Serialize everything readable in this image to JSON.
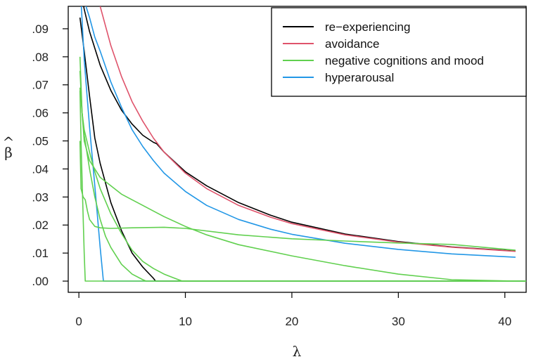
{
  "chart_data": {
    "type": "line",
    "xlabel": "λ",
    "ylabel": "β̂",
    "ylabel_base": "β",
    "ylabel_hat": "^",
    "xlim": [
      -1,
      42
    ],
    "ylim": [
      -0.004,
      0.098
    ],
    "xticks": [
      0,
      10,
      20,
      30,
      40
    ],
    "xtick_labels": [
      "0",
      "10",
      "20",
      "30",
      "40"
    ],
    "yticks": [
      0.0,
      0.01,
      0.02,
      0.03,
      0.04,
      0.05,
      0.06,
      0.07,
      0.08,
      0.09
    ],
    "ytick_labels": [
      ".00",
      ".01",
      ".02",
      ".03",
      ".04",
      ".05",
      ".06",
      ".07",
      ".08",
      ".09"
    ],
    "legend": {
      "position": "top-right",
      "entries": [
        {
          "label": "re−experiencing",
          "color": "#000000"
        },
        {
          "label": "avoidance",
          "color": "#DF536B"
        },
        {
          "label": "negative cognitions and mood",
          "color": "#61D04F"
        },
        {
          "label": "hyperarousal",
          "color": "#2297E6"
        }
      ]
    },
    "series": [
      {
        "name": "re-experiencing",
        "group": "re−experiencing",
        "color": "#000000",
        "x": [
          0.1,
          0.5,
          1,
          2,
          3,
          4,
          5,
          6,
          7,
          7.3,
          8,
          10,
          12,
          15,
          18,
          20,
          25,
          30,
          35,
          41
        ],
        "y": [
          0.105,
          0.097,
          0.089,
          0.077,
          0.068,
          0.061,
          0.056,
          0.052,
          0.0495,
          0.049,
          0.046,
          0.039,
          0.034,
          0.028,
          0.0235,
          0.021,
          0.0168,
          0.0141,
          0.0122,
          0.0107
        ]
      },
      {
        "name": "re-experiencing-2",
        "group": "re−experiencing",
        "color": "#000000",
        "x": [
          0.1,
          0.5,
          1,
          1.5,
          2,
          3,
          4,
          5,
          6,
          7,
          7.2,
          42
        ],
        "y": [
          0.094,
          0.082,
          0.066,
          0.051,
          0.042,
          0.028,
          0.018,
          0.01,
          0.005,
          0.001,
          0,
          0
        ]
      },
      {
        "name": "avoidance",
        "group": "avoidance",
        "color": "#DF536B",
        "x": [
          2,
          3,
          4,
          5,
          6,
          7,
          8,
          10,
          12,
          15,
          18,
          20,
          25,
          30,
          35,
          41
        ],
        "y": [
          0.098,
          0.084,
          0.073,
          0.064,
          0.057,
          0.051,
          0.046,
          0.0385,
          0.033,
          0.027,
          0.0228,
          0.0205,
          0.0165,
          0.0139,
          0.0121,
          0.0106
        ]
      },
      {
        "name": "hyperarousal-1",
        "group": "hyperarousal",
        "color": "#2297E6",
        "x": [
          0.2,
          0.5,
          1,
          1.5,
          2,
          3,
          4,
          5,
          6,
          7,
          8,
          10,
          12,
          15,
          18,
          20,
          25,
          30,
          35,
          41
        ],
        "y": [
          0.105,
          0.1,
          0.094,
          0.087,
          0.082,
          0.071,
          0.062,
          0.054,
          0.048,
          0.043,
          0.0385,
          0.032,
          0.027,
          0.022,
          0.0185,
          0.0167,
          0.0135,
          0.0113,
          0.0097,
          0.0085
        ]
      },
      {
        "name": "hyperarousal-2",
        "group": "hyperarousal",
        "color": "#2297E6",
        "x": [
          0.2,
          0.5,
          1,
          1.5,
          2,
          2.3,
          42
        ],
        "y": [
          0.1,
          0.079,
          0.055,
          0.034,
          0.012,
          0,
          0
        ]
      },
      {
        "name": "negative-1",
        "group": "negative cognitions and mood",
        "color": "#61D04F",
        "x": [
          0.1,
          0.3,
          0.5,
          1,
          1.5,
          2,
          3,
          4,
          5,
          6,
          7,
          8,
          10,
          12,
          15,
          20,
          25,
          30,
          35,
          41
        ],
        "y": [
          0.08,
          0.06,
          0.05,
          0.043,
          0.04,
          0.037,
          0.034,
          0.031,
          0.029,
          0.027,
          0.025,
          0.023,
          0.0195,
          0.0165,
          0.013,
          0.009,
          0.0055,
          0.0025,
          0.0005,
          0
        ]
      },
      {
        "name": "negative-2",
        "group": "negative cognitions and mood",
        "color": "#61D04F",
        "x": [
          0.1,
          0.3,
          0.5,
          1,
          1.5,
          2,
          3,
          4,
          5,
          6,
          7,
          8,
          9,
          9.7,
          42
        ],
        "y": [
          0.075,
          0.06,
          0.054,
          0.046,
          0.039,
          0.033,
          0.024,
          0.017,
          0.011,
          0.007,
          0.0045,
          0.0025,
          0.001,
          0,
          0
        ]
      },
      {
        "name": "negative-3",
        "group": "negative cognitions and mood",
        "color": "#61D04F",
        "x": [
          0.1,
          0.3,
          0.5,
          1,
          1.5,
          2,
          2.5,
          3,
          4,
          5,
          6,
          6.3,
          42
        ],
        "y": [
          0.069,
          0.06,
          0.052,
          0.04,
          0.03,
          0.022,
          0.016,
          0.012,
          0.006,
          0.0025,
          0.0005,
          0,
          0
        ]
      },
      {
        "name": "negative-4",
        "group": "negative cognitions and mood",
        "color": "#61D04F",
        "x": [
          0.1,
          0.2,
          0.4,
          0.6,
          0.8,
          1,
          1.5,
          2,
          3,
          5,
          8,
          10,
          15,
          20,
          25,
          30,
          35,
          41
        ],
        "y": [
          0.05,
          0.033,
          0.03,
          0.029,
          0.025,
          0.022,
          0.0195,
          0.019,
          0.0188,
          0.019,
          0.0192,
          0.0188,
          0.0165,
          0.0151,
          0.0143,
          0.0136,
          0.0131,
          0.011
        ]
      },
      {
        "name": "negative-5",
        "group": "negative cognitions and mood",
        "color": "#61D04F",
        "x": [
          0.1,
          0.2,
          0.35,
          0.5,
          0.6,
          42
        ],
        "y": [
          0.068,
          0.05,
          0.03,
          0.01,
          0,
          0
        ]
      }
    ]
  }
}
